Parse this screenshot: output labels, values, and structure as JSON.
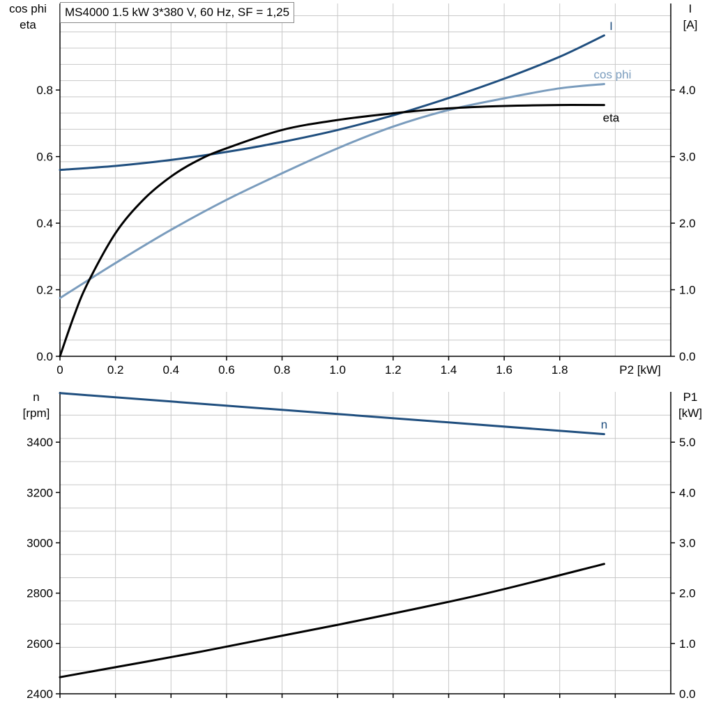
{
  "chart_data": [
    {
      "type": "line",
      "title": "MS4000   1.5 kW   3*380 V, 60 Hz, SF = 1,25",
      "x_axis": {
        "label": "P2 [kW]",
        "range": [
          0,
          2.2
        ],
        "ticks": [
          "0",
          "0.2",
          "0.4",
          "0.6",
          "0.8",
          "1.0",
          "1.2",
          "1.4",
          "1.6",
          "1.8"
        ],
        "tick_values": [
          0,
          0.2,
          0.4,
          0.6,
          0.8,
          1.0,
          1.2,
          1.4,
          1.6,
          1.8
        ]
      },
      "y_left": {
        "label_line1": "cos phi",
        "label_line2": "eta",
        "range": [
          0,
          1.06
        ],
        "ticks": [
          "0.0",
          "0.2",
          "0.4",
          "0.6",
          "0.8"
        ],
        "tick_values": [
          0,
          0.2,
          0.4,
          0.6,
          0.8
        ]
      },
      "y_right": {
        "label_line1": "I",
        "label_line2": "[A]",
        "range": [
          0,
          5.3
        ],
        "ticks": [
          "0.0",
          "1.0",
          "2.0",
          "3.0",
          "4.0"
        ],
        "tick_values": [
          0,
          1,
          2,
          3,
          4
        ]
      },
      "grid": true,
      "series": [
        {
          "name": "I",
          "axis": "right",
          "color": "#1f4e7e",
          "x": [
            0,
            0.2,
            0.4,
            0.6,
            0.8,
            1.0,
            1.2,
            1.4,
            1.6,
            1.8,
            1.96
          ],
          "y": [
            2.8,
            2.86,
            2.95,
            3.07,
            3.22,
            3.4,
            3.62,
            3.88,
            4.17,
            4.5,
            4.82
          ]
        },
        {
          "name": "cos phi",
          "axis": "left",
          "color": "#7a9cbd",
          "x": [
            0,
            0.2,
            0.4,
            0.6,
            0.8,
            1.0,
            1.2,
            1.4,
            1.6,
            1.8,
            1.96
          ],
          "y": [
            0.175,
            0.28,
            0.38,
            0.47,
            0.55,
            0.625,
            0.69,
            0.74,
            0.775,
            0.805,
            0.818
          ]
        },
        {
          "name": "eta",
          "axis": "left",
          "color": "#000000",
          "x": [
            0,
            0.05,
            0.1,
            0.2,
            0.3,
            0.4,
            0.5,
            0.6,
            0.8,
            1.0,
            1.2,
            1.4,
            1.6,
            1.8,
            1.96
          ],
          "y": [
            0,
            0.12,
            0.22,
            0.37,
            0.47,
            0.54,
            0.59,
            0.625,
            0.68,
            0.71,
            0.73,
            0.745,
            0.752,
            0.755,
            0.755
          ]
        }
      ]
    },
    {
      "type": "line",
      "x_axis": {
        "range": [
          0,
          2.2
        ],
        "tick_values": [
          0,
          0.2,
          0.4,
          0.6,
          0.8,
          1.0,
          1.2,
          1.4,
          1.6,
          1.8,
          2.0
        ]
      },
      "y_left": {
        "label_line1": "n",
        "label_line2": "[rpm]",
        "range": [
          2400,
          3600
        ],
        "ticks": [
          "2400",
          "2600",
          "2800",
          "3000",
          "3200",
          "3400"
        ],
        "tick_values": [
          2400,
          2600,
          2800,
          3000,
          3200,
          3400
        ]
      },
      "y_right": {
        "label_line1": "P1",
        "label_line2": "[kW]",
        "range": [
          0,
          6
        ],
        "ticks": [
          "0.0",
          "1.0",
          "2.0",
          "3.0",
          "4.0",
          "5.0"
        ],
        "tick_values": [
          0,
          1,
          2,
          3,
          4,
          5
        ]
      },
      "grid": true,
      "series": [
        {
          "name": "n",
          "axis": "left",
          "color": "#1f4e7e",
          "x": [
            0,
            1.96
          ],
          "y": [
            3595,
            3432
          ]
        },
        {
          "name": "",
          "axis": "right",
          "color": "#000000",
          "x": [
            0,
            0.5,
            1.0,
            1.5,
            1.96
          ],
          "y": [
            0.33,
            0.83,
            1.37,
            1.95,
            2.58
          ]
        }
      ]
    }
  ]
}
